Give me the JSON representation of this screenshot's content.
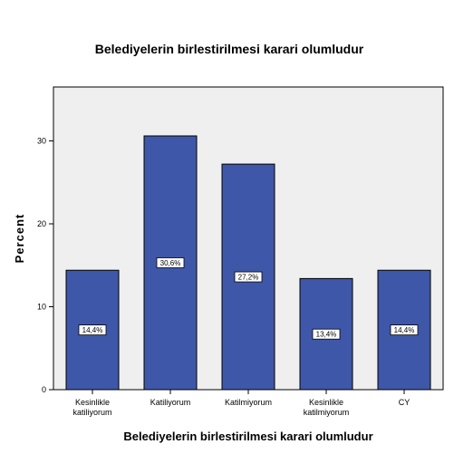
{
  "chart_data": {
    "type": "bar",
    "title": "Belediyelerin birlestirilmesi karari olumludur",
    "xlabel": "Belediyelerin birlestirilmesi karari olumludur",
    "ylabel": "Percent",
    "ylim": [
      0,
      36.5
    ],
    "yticks": [
      0,
      10,
      20,
      30
    ],
    "grid": false,
    "categories": [
      [
        "Kesinlikle",
        "katiliyorum"
      ],
      [
        "Katiliyorum"
      ],
      [
        "Katilmiyorum"
      ],
      [
        "Kesinlikle",
        "katilmiyorum"
      ],
      [
        "CY"
      ]
    ],
    "values": [
      14.4,
      30.6,
      27.2,
      13.4,
      14.4
    ],
    "data_labels": [
      "14,4%",
      "30,6%",
      "27,2%",
      "13,4%",
      "14,4%"
    ],
    "colors": {
      "bar": "#3f57a8",
      "plot_background": "#efefef",
      "axis": "#000000"
    }
  }
}
